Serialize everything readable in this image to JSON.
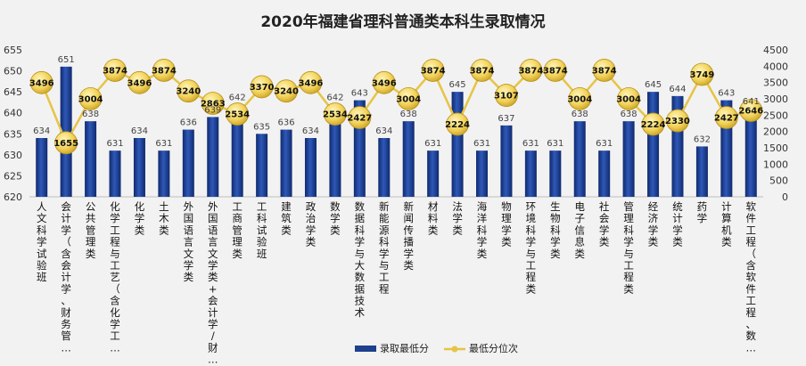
{
  "chart_data": {
    "type": "bar",
    "title": "2020年福建省理科普通类本科生录取情况",
    "categories": [
      "人文科学试验班",
      "会计学（含会计学、财务管…",
      "公共管理类",
      "化学工程与工艺（含化学工…",
      "化学类",
      "土木类",
      "外国语言文学类",
      "外国语言文学类+会计学/财…",
      "工商管理类",
      "工科试验班",
      "建筑类",
      "政治学类",
      "数学类",
      "数据科学与大数据技术",
      "新能源科学与工程",
      "新闻传播学类",
      "材料类",
      "法学类",
      "海洋科学类",
      "物理学类",
      "环境科学与工程类",
      "生物科学类",
      "电子信息类",
      "社会学类",
      "管理科学与工程类",
      "经济学类",
      "统计学类",
      "药学",
      "计算机类",
      "软件工程（含软件工程、数…"
    ],
    "series": [
      {
        "name": "录取最低分",
        "type": "bar",
        "axis": "left",
        "color": "#1f3f8f",
        "values": [
          634,
          651,
          638,
          631,
          634,
          631,
          636,
          639,
          642,
          635,
          636,
          634,
          642,
          643,
          634,
          638,
          631,
          645,
          631,
          637,
          631,
          631,
          638,
          631,
          638,
          645,
          644,
          632,
          643,
          641
        ]
      },
      {
        "name": "最低分位次",
        "type": "line",
        "axis": "right",
        "color": "#e6c445",
        "values": [
          3496,
          1655,
          3004,
          3874,
          3496,
          3874,
          3240,
          2863,
          2534,
          3370,
          3240,
          3496,
          2534,
          2427,
          3496,
          3004,
          3874,
          2224,
          3874,
          3107,
          3874,
          3874,
          3004,
          3874,
          3004,
          2224,
          2330,
          3749,
          2427,
          2646
        ]
      }
    ],
    "ylim_left": [
      620,
      655
    ],
    "yticks_left": [
      620,
      625,
      630,
      635,
      640,
      645,
      650,
      655
    ],
    "ylim_right": [
      0,
      4500
    ],
    "yticks_right": [
      0,
      500,
      1000,
      1500,
      2000,
      2500,
      3000,
      3500,
      4000,
      4500
    ],
    "grid": false,
    "legend": "bottom"
  }
}
